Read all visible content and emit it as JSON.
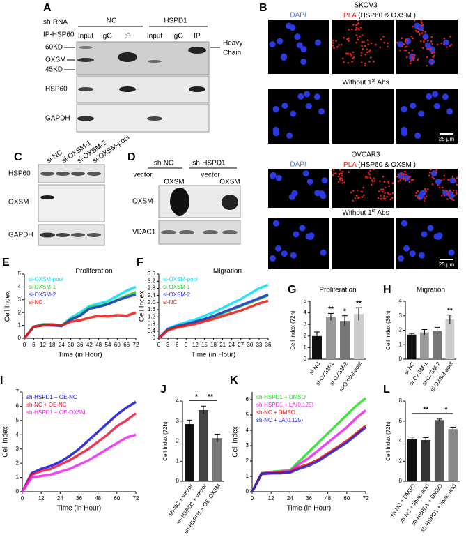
{
  "panel_a": {
    "label": "A",
    "sh_rna": "sh-RNA",
    "groups": [
      "NC",
      "HSPD1"
    ],
    "ip": "IP-HSP60",
    "lanes": [
      "Input",
      "IgG",
      "IP",
      "Input",
      "IgG",
      "IP"
    ],
    "markers": [
      "60KD",
      "OXSM",
      "45KD"
    ],
    "heavy_chain": [
      "Heavy",
      "Chain"
    ],
    "rows": [
      "HSP60",
      "GAPDH"
    ]
  },
  "panel_b": {
    "label": "B",
    "cell_lines": [
      "SKOV3",
      "OVCAR3"
    ],
    "stain_dapi": "DAPI",
    "stain_pla": "PLA",
    "pla_target": " (HSP60 & OXSM )",
    "control": [
      "Without 1",
      "st",
      " Abs"
    ],
    "scale": "25 μm"
  },
  "panel_c": {
    "label": "C",
    "lanes": [
      "si-NC",
      "si-OXSM-1",
      "si-OXSM-2",
      "si-OXSM-pool"
    ],
    "rows": [
      "HSP60",
      "OXSM",
      "GAPDH"
    ]
  },
  "panel_d": {
    "label": "D",
    "groups": [
      "sh-NC",
      "sh-HSPD1"
    ],
    "lanes": [
      "vector",
      "OXSM",
      "vector",
      "OXSM"
    ],
    "rows": [
      "OXSM",
      "VDAC1"
    ]
  },
  "chart_data": [
    {
      "label": "E",
      "type": "line",
      "title": "Proliferation",
      "x_label": "Time (in Hour)",
      "y_label": "Cell Index",
      "x": [
        0,
        6,
        12,
        18,
        24,
        30,
        36,
        42,
        48,
        54,
        60,
        66,
        72
      ],
      "series": [
        {
          "name": "si-OXSM-pool",
          "color": "#00e0ee",
          "values": [
            0,
            0.9,
            1.1,
            1.1,
            1.0,
            1.6,
            2.0,
            2.5,
            2.7,
            2.9,
            3.3,
            3.7,
            4.0
          ]
        },
        {
          "name": "si-OXSM-1",
          "color": "#22cc22",
          "values": [
            0,
            0.9,
            1.05,
            1.05,
            0.95,
            1.5,
            1.8,
            2.4,
            2.5,
            2.7,
            3.0,
            3.3,
            3.6
          ]
        },
        {
          "name": "si-OXSM-2",
          "color": "#2233cc",
          "values": [
            0,
            0.9,
            1.0,
            1.0,
            0.95,
            1.45,
            1.75,
            2.3,
            2.45,
            2.65,
            2.95,
            3.2,
            3.4
          ]
        },
        {
          "name": "si-NC",
          "color": "#ee1111",
          "values": [
            0,
            0.9,
            1.0,
            1.05,
            1.0,
            1.3,
            1.4,
            1.6,
            1.75,
            1.7,
            1.8,
            1.75,
            2.0
          ]
        }
      ],
      "xlim": [
        0,
        72
      ],
      "ylim": [
        0,
        5
      ],
      "xticks": [
        0,
        6,
        12,
        18,
        24,
        30,
        36,
        42,
        48,
        54,
        60,
        66,
        72
      ],
      "yticks": [
        0,
        1,
        2,
        3,
        4,
        5
      ]
    },
    {
      "label": "F",
      "type": "line",
      "title": "Migration",
      "x_label": "Time (in Hour)",
      "y_label": "Cell Index",
      "x": [
        0,
        3,
        6,
        9,
        12,
        15,
        18,
        21,
        24,
        27,
        30,
        33,
        36
      ],
      "series": [
        {
          "name": "si-OXSM-pool",
          "color": "#00e0ee",
          "values": [
            0,
            0.55,
            0.75,
            0.9,
            1.05,
            1.25,
            1.45,
            1.7,
            1.95,
            2.2,
            2.5,
            2.8,
            3.0
          ]
        },
        {
          "name": "si-OXSM-1",
          "color": "#22cc22",
          "values": [
            0,
            0.5,
            0.65,
            0.78,
            0.9,
            1.05,
            1.2,
            1.4,
            1.6,
            1.8,
            2.0,
            2.2,
            2.4
          ]
        },
        {
          "name": "si-OXSM-2",
          "color": "#2233cc",
          "values": [
            0,
            0.5,
            0.68,
            0.8,
            0.93,
            1.08,
            1.25,
            1.45,
            1.65,
            1.85,
            2.05,
            2.25,
            2.45
          ]
        },
        {
          "name": "si-NC",
          "color": "#ee1111",
          "values": [
            0,
            0.45,
            0.6,
            0.7,
            0.8,
            0.95,
            1.08,
            1.25,
            1.4,
            1.55,
            1.75,
            1.95,
            2.1
          ]
        }
      ],
      "xlim": [
        0,
        36
      ],
      "ylim": [
        0,
        3.6
      ],
      "xticks": [
        0,
        3,
        6,
        9,
        12,
        15,
        18,
        21,
        24,
        27,
        30,
        33,
        36
      ],
      "yticks": [
        0,
        0.4,
        0.8,
        1.2,
        1.6,
        {
          "value": 2,
          "label": "2.0"
        },
        2.4,
        2.8,
        3.2,
        3.6
      ]
    },
    {
      "label": "G",
      "type": "bar",
      "title": "Proliferation",
      "y_label": "Cell Index (72h)",
      "categories": [
        "si-NC",
        "si-OXSM-1",
        "si-OXSM-2",
        "si-OXSM-pool"
      ],
      "values": [
        2.0,
        3.65,
        3.3,
        3.9
      ],
      "errors": [
        0.35,
        0.3,
        0.45,
        0.55
      ],
      "colors": [
        "#111111",
        "#999999",
        "#777777",
        "#cccccc"
      ],
      "annotations": [
        null,
        "**",
        "*",
        "**"
      ],
      "ylim": [
        0,
        5
      ],
      "yticks": [
        0,
        1,
        2,
        3,
        4,
        5
      ]
    },
    {
      "label": "H",
      "type": "bar",
      "title": "Migration",
      "y_label": "Cell Index (36h)",
      "categories": [
        "si-NC",
        "si-OXSM-1",
        "si-OXSM-2",
        "si-OXSM-pool"
      ],
      "values": [
        1.7,
        1.85,
        1.95,
        2.75
      ],
      "errors": [
        0.08,
        0.2,
        0.25,
        0.3
      ],
      "colors": [
        "#111111",
        "#999999",
        "#777777",
        "#cccccc"
      ],
      "annotations": [
        null,
        null,
        null,
        "**"
      ],
      "ylim": [
        0,
        4
      ],
      "yticks": [
        0,
        1,
        2,
        3,
        4
      ]
    },
    {
      "label": "I",
      "type": "line",
      "x_label": "Time (in Hour)",
      "y_label": "Cell Index",
      "x": [
        0,
        6,
        12,
        18,
        24,
        30,
        36,
        42,
        48,
        54,
        60,
        66,
        72
      ],
      "series": [
        {
          "name": "sh-HSPD1 + OE-NC",
          "color": "#1111dd",
          "values": [
            0,
            1.3,
            1.6,
            1.8,
            2.1,
            2.5,
            3.0,
            3.6,
            4.2,
            4.8,
            5.4,
            5.9,
            6.3
          ]
        },
        {
          "name": "sh-NC + OE-NC",
          "color": "#ee1133",
          "values": [
            0,
            1.2,
            1.45,
            1.6,
            1.9,
            2.2,
            2.6,
            3.0,
            3.5,
            4.0,
            4.6,
            5.0,
            5.5
          ]
        },
        {
          "name": "sh-HSPD1 + OE-OXSM",
          "color": "#ee22ee",
          "values": [
            0,
            1.0,
            1.1,
            1.2,
            1.4,
            1.6,
            1.9,
            2.2,
            2.6,
            3.0,
            3.4,
            3.8,
            4.0
          ]
        }
      ],
      "xlim": [
        0,
        72
      ],
      "ylim": [
        0,
        7
      ],
      "xticks": [
        0,
        12,
        24,
        36,
        48,
        60,
        72
      ],
      "yticks": [
        0,
        1,
        2,
        3,
        4,
        5,
        6,
        7
      ]
    },
    {
      "label": "J",
      "type": "bar",
      "y_label": "Cell Index (72h)",
      "categories": [
        "sh-NC + vector",
        "sh-HSPD1 + vector",
        "sh-HSPD1 + OE-OXSM"
      ],
      "values": [
        2.85,
        3.55,
        2.15
      ],
      "errors": [
        0.2,
        0.2,
        0.2
      ],
      "colors": [
        "#111111",
        "#444444",
        "#777777"
      ],
      "brackets": [
        {
          "from": 0,
          "to": 1,
          "text": "*"
        },
        {
          "from": 1,
          "to": 2,
          "text": "**"
        }
      ],
      "ylim": [
        0,
        4
      ],
      "yticks": [
        0,
        1,
        2,
        3,
        4
      ]
    },
    {
      "label": "K",
      "type": "line",
      "x_label": "Time (in Hour)",
      "y_label": "Cell Index",
      "x": [
        0,
        6,
        12,
        18,
        24,
        30,
        36,
        42,
        48,
        54,
        60,
        66,
        72
      ],
      "series": [
        {
          "name": "sh-HSPD1 + DMSO",
          "color": "#22dd22",
          "values": [
            0,
            1.2,
            1.3,
            1.35,
            1.4,
            2.0,
            2.6,
            3.2,
            3.8,
            4.4,
            5.0,
            5.6,
            6.1
          ]
        },
        {
          "name": "sh-HSPD1 + LA(0.125)",
          "color": "#ee22ee",
          "values": [
            0,
            1.2,
            1.25,
            1.3,
            1.35,
            1.8,
            2.2,
            2.7,
            3.2,
            3.7,
            4.2,
            4.8,
            5.3
          ]
        },
        {
          "name": "sh-NC + DMSO",
          "color": "#ee1111",
          "values": [
            0,
            1.2,
            1.2,
            1.25,
            1.3,
            1.6,
            1.8,
            2.1,
            2.5,
            2.9,
            3.3,
            3.8,
            4.3
          ]
        },
        {
          "name": "sh-NC + LA(0.125)",
          "color": "#2222cc",
          "values": [
            0,
            1.15,
            1.2,
            1.2,
            1.25,
            1.5,
            1.7,
            2.0,
            2.4,
            2.8,
            3.2,
            3.7,
            4.2
          ]
        }
      ],
      "xlim": [
        0,
        72
      ],
      "ylim": [
        0,
        6.5
      ],
      "xticks": [
        0,
        12,
        24,
        36,
        48,
        60,
        72
      ],
      "yticks": [
        0,
        1,
        2,
        3,
        4,
        5,
        6
      ]
    },
    {
      "label": "L",
      "type": "bar",
      "y_label": "Cell Index (72h)",
      "categories": [
        "sh-NC + DMSO",
        "sh-NC + lipoic acid",
        "sh-HSPD1 + DMSO",
        "sh-HSPD1 + lipoic acid"
      ],
      "values": [
        4.2,
        4.1,
        6.1,
        5.2
      ],
      "errors": [
        0.2,
        0.25,
        0.1,
        0.2
      ],
      "colors": [
        "#111111",
        "#333333",
        "#555555",
        "#888888"
      ],
      "brackets": [
        {
          "from": 0,
          "to": 2,
          "text": "**"
        },
        {
          "from": 2,
          "to": 3,
          "text": "*"
        }
      ],
      "ylim": [
        0,
        8
      ],
      "yticks": [
        0,
        2,
        4,
        6,
        8
      ]
    }
  ]
}
